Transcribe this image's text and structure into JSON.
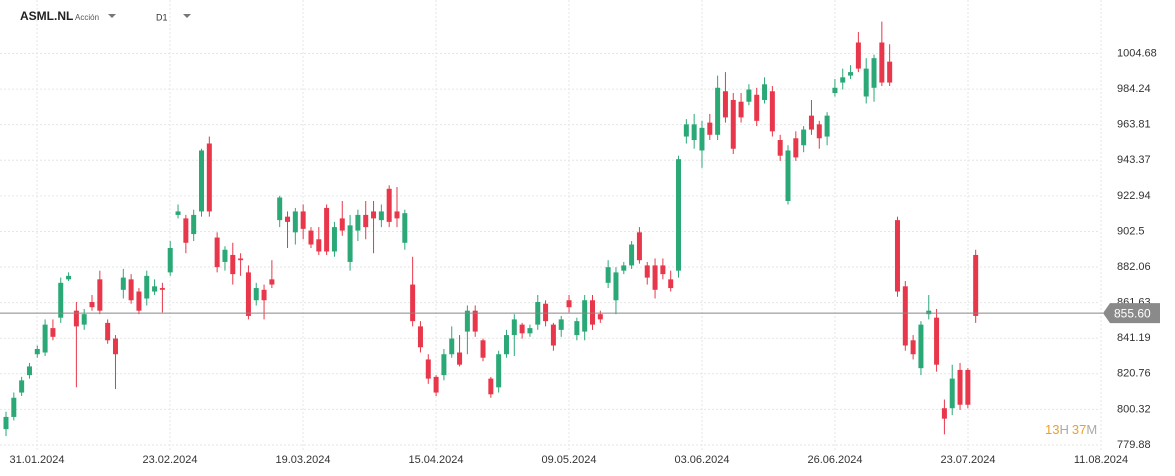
{
  "header": {
    "symbol": "ASML.NL",
    "kind": "Acción",
    "timeframe": "D1"
  },
  "countdown": {
    "hours": "13",
    "hours_unit": "H",
    "minutes": "37",
    "minutes_unit": "M"
  },
  "chart_data": {
    "type": "candlestick",
    "ylim": [
      777.01,
      1029.66
    ],
    "yticks": [
      779.88,
      800.32,
      820.76,
      841.19,
      861.63,
      882.06,
      902.5,
      922.94,
      943.37,
      963.81,
      984.24,
      1004.68
    ],
    "xtick_labels": [
      "31.01.2024",
      "23.02.2024",
      "19.03.2024",
      "15.04.2024",
      "09.05.2024",
      "03.06.2024",
      "26.06.2024",
      "23.07.2024",
      "11.08.2024"
    ],
    "last_price": 855.6,
    "last_price_label": "855.60",
    "grid": true,
    "up_color": "#2aa876",
    "down_color": "#e8374a",
    "open": [
      789,
      796,
      810,
      820,
      832,
      833,
      847,
      853,
      875,
      857,
      849,
      862,
      875,
      850,
      841,
      869,
      875,
      868,
      864,
      868,
      870,
      879,
      912,
      910,
      901,
      914,
      953,
      899,
      885,
      889,
      887,
      879,
      863,
      869,
      875,
      909,
      911,
      902,
      914,
      903,
      898,
      916,
      891,
      910,
      885,
      903,
      912,
      914,
      909,
      927,
      914,
      896,
      872,
      848,
      829,
      819,
      820,
      832,
      833,
      845,
      857,
      840,
      818,
      813,
      832,
      843,
      849,
      844,
      849,
      861,
      849,
      846,
      863,
      843,
      845,
      863,
      855,
      873,
      863,
      880,
      883,
      902,
      883,
      883,
      883,
      875,
      880,
      957,
      955,
      949,
      965,
      958,
      983,
      978,
      977,
      977,
      981,
      978,
      983,
      955,
      920,
      956,
      952,
      969,
      964,
      957,
      982,
      988,
      992,
      1011,
      980,
      985,
      1011,
      1000,
      909,
      871,
      840,
      824,
      855,
      853,
      801,
      801,
      823,
      823,
      889
    ],
    "high": [
      799,
      810,
      819,
      827,
      837,
      852,
      852,
      876,
      879,
      862,
      858,
      866,
      880,
      852,
      843,
      881,
      878,
      870,
      880,
      875,
      873,
      897,
      918,
      912,
      915,
      950,
      957,
      902,
      894,
      896,
      890,
      883,
      873,
      872,
      886,
      923,
      914,
      916,
      918,
      905,
      905,
      918,
      908,
      920,
      912,
      915,
      920,
      920,
      918,
      929,
      928,
      915,
      888,
      851,
      832,
      820,
      835,
      848,
      843,
      860,
      860,
      841,
      819,
      834,
      846,
      855,
      850,
      849,
      866,
      863,
      850,
      854,
      866,
      853,
      866,
      866,
      857,
      886,
      882,
      885,
      897,
      905,
      885,
      887,
      887,
      880,
      946,
      967,
      970,
      966,
      970,
      992,
      994,
      982,
      982,
      987,
      985,
      991,
      986,
      958,
      952,
      960,
      963,
      978,
      966,
      971,
      990,
      996,
      998,
      1017,
      1002,
      1004,
      1023,
      1010,
      911,
      874,
      843,
      851,
      866,
      858,
      806,
      826,
      827,
      824,
      892
    ],
    "low": [
      785,
      794,
      808,
      818,
      830,
      831,
      840,
      850,
      874,
      813,
      846,
      857,
      855,
      838,
      812,
      864,
      861,
      855,
      860,
      866,
      856,
      877,
      910,
      890,
      897,
      911,
      911,
      879,
      880,
      872,
      877,
      852,
      860,
      852,
      870,
      905,
      893,
      895,
      898,
      893,
      889,
      889,
      888,
      900,
      880,
      897,
      898,
      890,
      905,
      905,
      905,
      892,
      848,
      833,
      815,
      808,
      817,
      830,
      825,
      832,
      842,
      828,
      807,
      810,
      830,
      831,
      841,
      842,
      846,
      848,
      834,
      842,
      856,
      840,
      840,
      846,
      850,
      870,
      855,
      878,
      881,
      884,
      872,
      864,
      875,
      868,
      876,
      953,
      950,
      939,
      955,
      955,
      965,
      947,
      965,
      975,
      963,
      976,
      957,
      943,
      918,
      943,
      948,
      958,
      950,
      952,
      980,
      984,
      990,
      994,
      976,
      977,
      986,
      986,
      865,
      834,
      829,
      820,
      852,
      822,
      786,
      797,
      800,
      801,
      850
    ],
    "close": [
      796,
      807,
      817,
      825,
      835,
      849,
      842,
      873,
      877,
      848,
      855,
      859,
      857,
      840,
      832,
      876,
      863,
      857,
      877,
      871,
      869,
      893,
      914,
      896,
      912,
      949,
      914,
      882,
      892,
      878,
      886,
      854,
      870,
      863,
      872,
      922,
      908,
      914,
      904,
      895,
      891,
      891,
      905,
      903,
      906,
      912,
      905,
      910,
      914,
      908,
      910,
      913,
      851,
      836,
      818,
      810,
      832,
      841,
      826,
      857,
      845,
      830,
      809,
      832,
      843,
      852,
      844,
      847,
      862,
      851,
      837,
      852,
      859,
      851,
      863,
      849,
      852,
      882,
      879,
      883,
      895,
      886,
      876,
      869,
      878,
      870,
      944,
      964,
      964,
      962,
      958,
      985,
      968,
      950,
      968,
      984,
      966,
      987,
      960,
      946,
      949,
      945,
      961,
      961,
      956,
      969,
      985,
      991,
      994,
      996,
      996,
      1002,
      988,
      988,
      868,
      837,
      832,
      849,
      857,
      826,
      795,
      818,
      803,
      803,
      854
    ]
  }
}
